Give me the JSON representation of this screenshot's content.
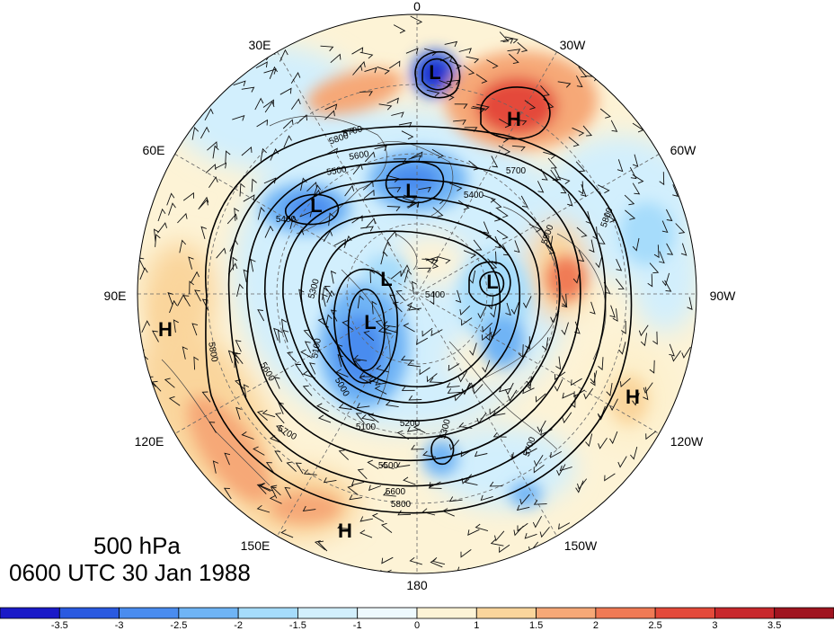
{
  "title": {
    "level": "500 hPa",
    "time": "0600 UTC 30 Jan 1988"
  },
  "longitude_labels": [
    "0",
    "30W",
    "60W",
    "90W",
    "120W",
    "150W",
    "180",
    "150E",
    "120E",
    "90E",
    "60E",
    "30E"
  ],
  "pressure_centers": [
    {
      "type": "L",
      "label": "L"
    },
    {
      "type": "H",
      "label": "H"
    },
    {
      "type": "L",
      "label": "L"
    },
    {
      "type": "L",
      "label": "L"
    },
    {
      "type": "L",
      "label": "L"
    },
    {
      "type": "L",
      "label": "L"
    },
    {
      "type": "L",
      "label": "L"
    },
    {
      "type": "H",
      "label": "H"
    },
    {
      "type": "H",
      "label": "H"
    },
    {
      "type": "H",
      "label": "H"
    }
  ],
  "contour_labels": [
    "5800",
    "5700",
    "5600",
    "5500",
    "5400",
    "5300",
    "5100",
    "5000",
    "5100",
    "5200",
    "5300",
    "5400",
    "5500",
    "5600",
    "5700",
    "5800",
    "5800",
    "5700",
    "5500",
    "5400",
    "5600",
    "5800",
    "5700"
  ],
  "colorbar": {
    "ticks": [
      "-3.5",
      "-3",
      "-2.5",
      "-2",
      "-1.5",
      "-1",
      "0",
      "1",
      "1.5",
      "2",
      "2.5",
      "3",
      "3.5"
    ],
    "colors": [
      "#1a1ac8",
      "#2a5ae0",
      "#4a8cef",
      "#6fb4f5",
      "#a6dcfb",
      "#d2effd",
      "#eef9fe",
      "#fdf3d6",
      "#fad59c",
      "#f6a877",
      "#f07a55",
      "#e44a3a",
      "#c8282c",
      "#a01420"
    ]
  },
  "colors": {
    "contour": "#000000",
    "background": "#ffffff"
  }
}
